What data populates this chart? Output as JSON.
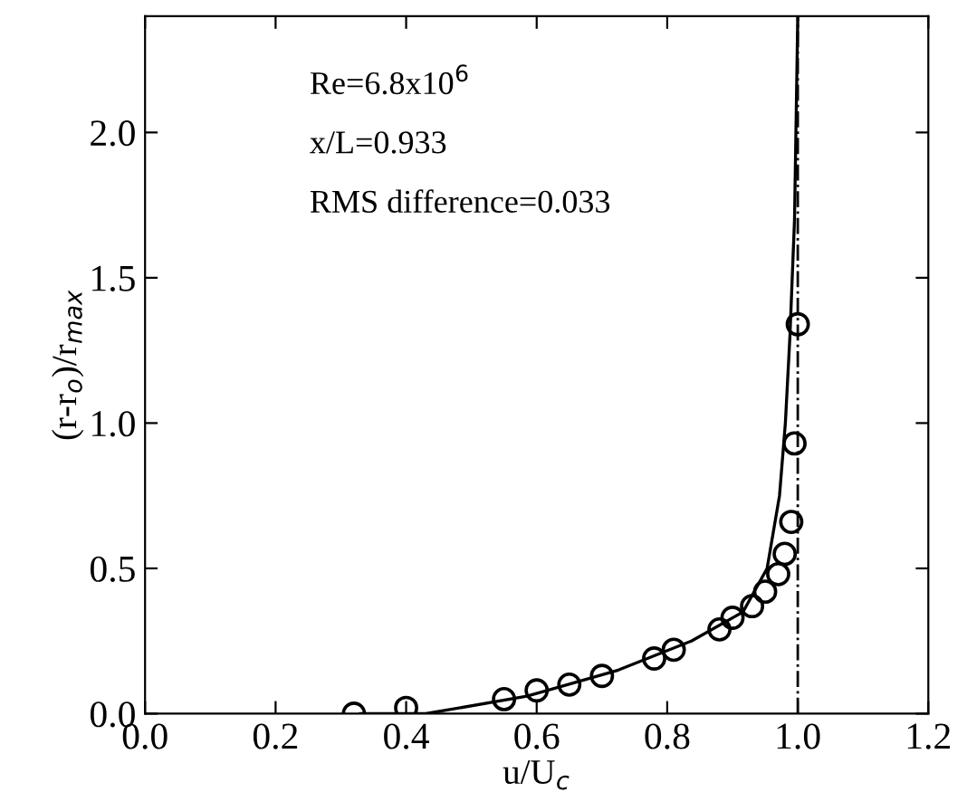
{
  "chart_data": {
    "type": "scatter",
    "xlabel": "u/U$_{c}$",
    "ylabel": "(r-r$_{o}$)/r$_{max}$",
    "xlim": [
      0.0,
      1.2
    ],
    "ylim": [
      0.0,
      2.4
    ],
    "xticks": [
      {
        "value": 0.0,
        "label": "0.0"
      },
      {
        "value": 0.2,
        "label": "0.2"
      },
      {
        "value": 0.4,
        "label": "0.4"
      },
      {
        "value": 0.6,
        "label": "0.6"
      },
      {
        "value": 0.8,
        "label": "0.8"
      },
      {
        "value": 1.0,
        "label": "1.0"
      },
      {
        "value": 1.2,
        "label": "1.2"
      }
    ],
    "yticks": [
      {
        "value": 0.0,
        "label": "0.0"
      },
      {
        "value": 0.5,
        "label": "0.5"
      },
      {
        "value": 1.0,
        "label": "1.0"
      },
      {
        "value": 1.5,
        "label": "1.5"
      },
      {
        "value": 2.0,
        "label": "2.0"
      }
    ],
    "grid": false,
    "legend": false,
    "series": [
      {
        "marker": "circle",
        "color": "#000000",
        "x": [
          0.32,
          0.4,
          0.55,
          0.6,
          0.65,
          0.7,
          0.78,
          0.81,
          0.88,
          0.9,
          0.93,
          0.95,
          0.97,
          0.98,
          0.99,
          0.995,
          1.0
        ],
        "values": [
          0.0,
          0.02,
          0.05,
          0.08,
          0.1,
          0.13,
          0.19,
          0.22,
          0.29,
          0.33,
          0.37,
          0.42,
          0.48,
          0.55,
          0.66,
          0.93,
          1.34
        ]
      },
      {
        "type": "line",
        "marker": "none",
        "line_style": "solid",
        "color": "#000000",
        "x": [
          0.33,
          0.43,
          0.585,
          0.725,
          0.837,
          0.916,
          0.953,
          0.972,
          0.981,
          0.988,
          0.995,
          1.0
        ],
        "values": [
          0.0,
          0.0,
          0.06,
          0.15,
          0.25,
          0.35,
          0.5,
          0.75,
          1.0,
          1.3,
          1.7,
          2.4
        ]
      }
    ],
    "ref_lines": [
      {
        "axis": "x",
        "value": 1.0,
        "color": "#000000",
        "line_style": "dashdot"
      }
    ],
    "annotations": [
      "Re=6.8x10$^{6}$",
      "x/L=0.933",
      "RMS difference=0.033"
    ]
  }
}
